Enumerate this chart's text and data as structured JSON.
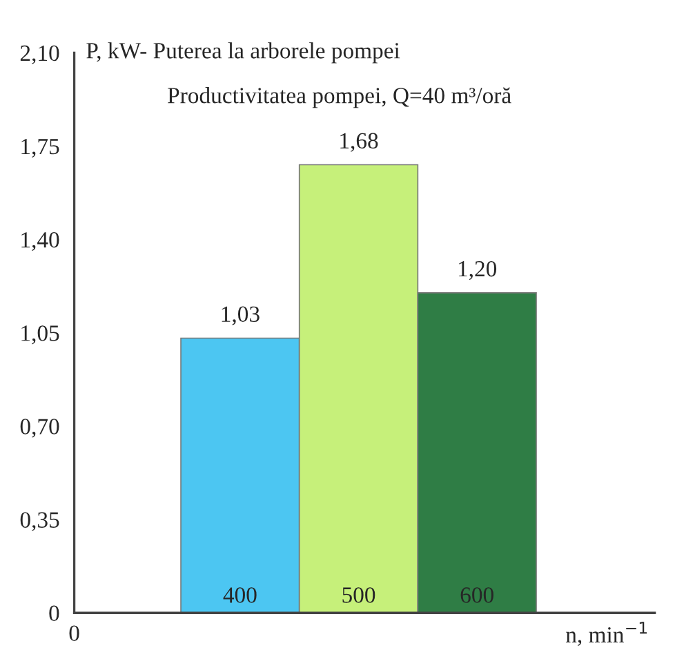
{
  "chart_data": {
    "type": "bar",
    "ylabel": "P, kW- Puterea la arborele pompei",
    "subtitle": "Productivitatea pompei, Q=40 m³/oră",
    "xlabel": "n, min$^{−1}$",
    "categories": [
      "400",
      "500",
      "600"
    ],
    "values": [
      1.03,
      1.68,
      1.2
    ],
    "value_labels": [
      "1,03",
      "1,68",
      "1,20"
    ],
    "colors": [
      "#4cc6f2",
      "#c6f07a",
      "#2f7d45"
    ],
    "ylim": [
      0,
      2.1
    ],
    "yticks": [
      0,
      {
        "value": 0.35,
        "label": "0,35"
      },
      {
        "value": 0.7,
        "label": "0,70"
      },
      {
        "value": 1.05,
        "label": "1,05"
      },
      {
        "value": 1.4,
        "label": "1,40"
      },
      {
        "value": 1.75,
        "label": "1,75"
      },
      {
        "value": 2.1,
        "label": "2,10"
      }
    ],
    "annotations": [
      "0"
    ],
    "grid": false,
    "legend": false
  }
}
